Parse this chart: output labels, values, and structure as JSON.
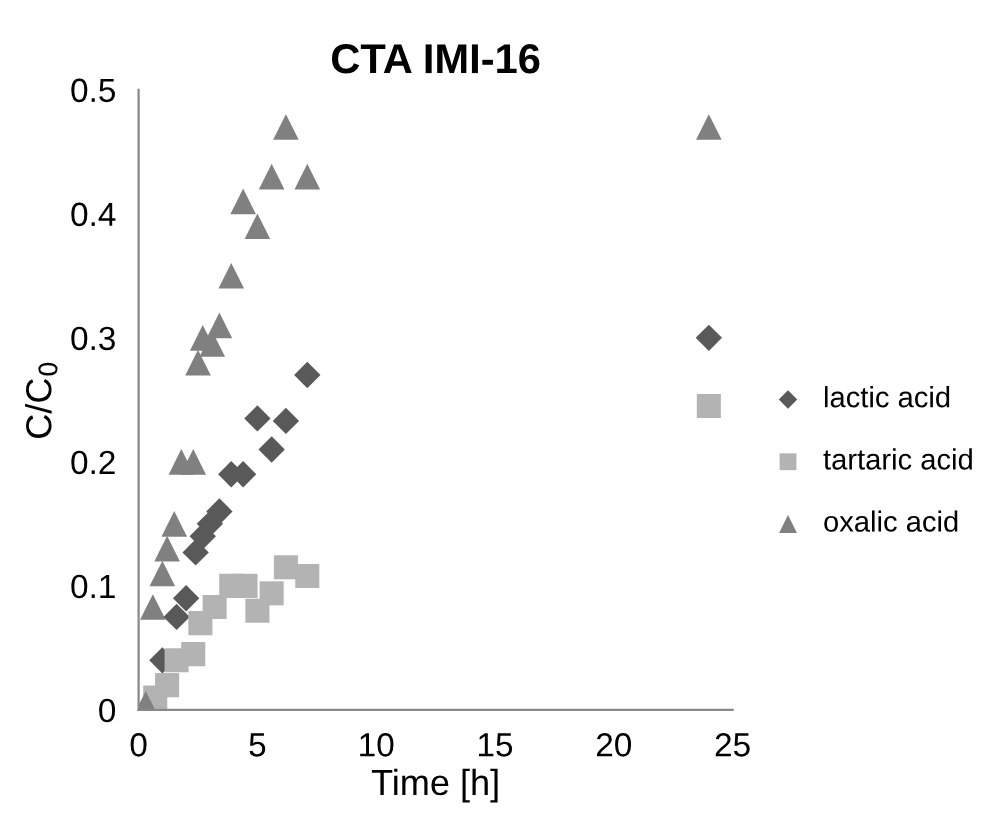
{
  "chart_data": {
    "type": "scatter",
    "title": "CTA IMI-16",
    "xlabel": "Time [h]",
    "ylabel": "C/C$_{0}$",
    "xlim": [
      0,
      25
    ],
    "xticks": [
      0,
      5,
      10,
      15,
      20,
      25
    ],
    "ylim": [
      0,
      0.5
    ],
    "yticks": [
      0,
      0.1,
      0.2,
      0.3,
      0.4,
      0.5
    ],
    "grid": false,
    "legend": "right",
    "series": [
      {
        "name": "lactic acid",
        "color": "#595959",
        "marker": "diamond",
        "x": [
          1.0,
          1.6,
          2.0,
          2.4,
          2.7,
          3.0,
          3.4,
          3.9,
          4.4,
          5.0,
          5.6,
          6.2,
          7.1,
          24
        ],
        "values": [
          0.04,
          0.075,
          0.09,
          0.127,
          0.14,
          0.15,
          0.16,
          0.19,
          0.19,
          0.235,
          0.21,
          0.233,
          0.27,
          0.3
        ]
      },
      {
        "name": "tartaric acid",
        "color": "#b3b3b3",
        "marker": "square",
        "x": [
          0.7,
          1.2,
          1.6,
          2.3,
          2.6,
          3.2,
          3.9,
          4.5,
          5.0,
          5.6,
          6.2,
          7.1,
          24
        ],
        "values": [
          0.01,
          0.02,
          0.04,
          0.045,
          0.07,
          0.083,
          0.1,
          0.1,
          0.08,
          0.094,
          0.115,
          0.108,
          0.245
        ]
      },
      {
        "name": "oxalic acid",
        "color": "#808080",
        "marker": "triangle",
        "x": [
          0.3,
          0.6,
          1.0,
          1.2,
          1.5,
          1.8,
          2.3,
          2.5,
          2.7,
          3.1,
          3.4,
          3.9,
          4.4,
          5.0,
          5.6,
          6.2,
          7.1,
          24
        ],
        "values": [
          0.005,
          0.083,
          0.11,
          0.13,
          0.15,
          0.2,
          0.2,
          0.28,
          0.3,
          0.295,
          0.31,
          0.35,
          0.41,
          0.39,
          0.43,
          0.47,
          0.43,
          0.47
        ]
      }
    ]
  }
}
